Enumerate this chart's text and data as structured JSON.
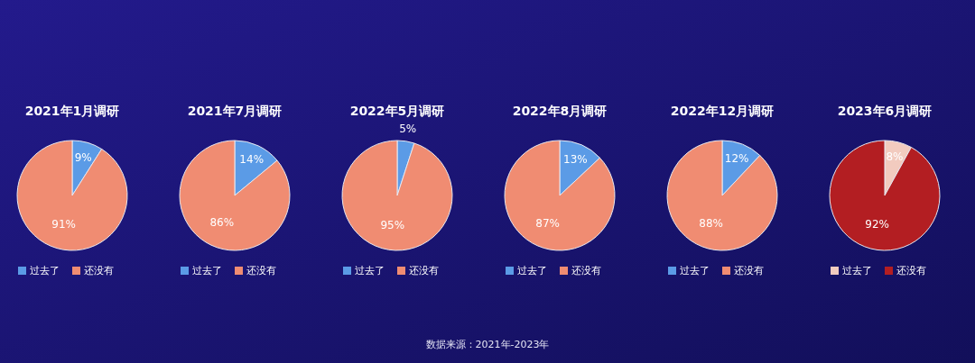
{
  "chart_data": [
    {
      "type": "pie",
      "title": "2021年1月调研",
      "categories": [
        "过去了",
        "还没有"
      ],
      "values": [
        9,
        91
      ],
      "value_labels": [
        "9%",
        "91%"
      ],
      "colors": [
        "#5b9be6",
        "#f08c72"
      ],
      "legend": "bottom"
    },
    {
      "type": "pie",
      "title": "2021年7月调研",
      "categories": [
        "过去了",
        "还没有"
      ],
      "values": [
        14,
        86
      ],
      "value_labels": [
        "14%",
        "86%"
      ],
      "colors": [
        "#5b9be6",
        "#f08c72"
      ],
      "legend": "bottom"
    },
    {
      "type": "pie",
      "title": "2022年5月调研",
      "categories": [
        "过去了",
        "还没有"
      ],
      "values": [
        5,
        95
      ],
      "value_labels": [
        "5%",
        "95%"
      ],
      "colors": [
        "#5b9be6",
        "#f08c72"
      ],
      "legend": "bottom"
    },
    {
      "type": "pie",
      "title": "2022年8月调研",
      "categories": [
        "过去了",
        "还没有"
      ],
      "values": [
        13,
        87
      ],
      "value_labels": [
        "13%",
        "87%"
      ],
      "colors": [
        "#5b9be6",
        "#f08c72"
      ],
      "legend": "bottom"
    },
    {
      "type": "pie",
      "title": "2022年12月调研",
      "categories": [
        "过去了",
        "还没有"
      ],
      "values": [
        12,
        88
      ],
      "value_labels": [
        "12%",
        "88%"
      ],
      "colors": [
        "#5b9be6",
        "#f08c72"
      ],
      "legend": "bottom"
    },
    {
      "type": "pie",
      "title": "2023年6月调研",
      "categories": [
        "过去了",
        "还没有"
      ],
      "values": [
        8,
        92
      ],
      "value_labels": [
        "8%",
        "92%"
      ],
      "colors": [
        "#f2cbbf",
        "#b31e22"
      ],
      "legend": "bottom",
      "annotations": [
        "数据来源：2021年-2023年"
      ]
    }
  ]
}
